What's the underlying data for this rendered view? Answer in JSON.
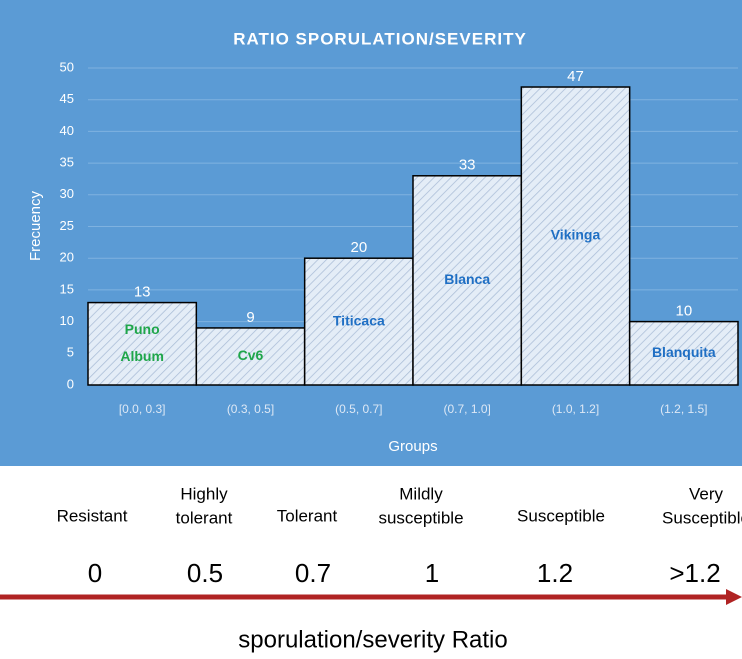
{
  "chart_data": {
    "type": "bar",
    "title": "RATIO SPORULATION/SEVERITY",
    "categories": [
      "[0.0, 0.3]",
      "(0.3, 0.5]",
      "(0.5, 0.7]",
      "(0.7, 1.0]",
      "(1.0, 1.2]",
      "(1.2, 1.5]"
    ],
    "values": [
      13,
      9,
      20,
      33,
      47,
      10
    ],
    "bar_labels": [
      [
        "Puno",
        "Album"
      ],
      [
        "Cv6"
      ],
      [
        "Titicaca"
      ],
      [
        "Blanca"
      ],
      [
        "Vikinga"
      ],
      [
        "Blanquita"
      ]
    ],
    "bar_label_colors": [
      "#1fa64a",
      "#1fa64a",
      "#1f6fc4",
      "#1f6fc4",
      "#1f6fc4",
      "#1f6fc4"
    ],
    "color": "#dfe9f5",
    "x_label": "Groups",
    "y_label": "Frecuency",
    "ylim": [
      0,
      50
    ],
    "yticks": [
      0,
      5,
      10,
      15,
      20,
      25,
      30,
      35,
      40,
      45,
      50
    ],
    "grid": true
  },
  "scale": {
    "classes": [
      [
        "Resistant"
      ],
      [
        "Highly",
        "tolerant"
      ],
      [
        "Tolerant"
      ],
      [
        "Mildly",
        "susceptible"
      ],
      [
        "Susceptible"
      ],
      [
        "Very",
        "Susceptible"
      ]
    ],
    "marks": [
      0,
      0.5,
      0.7,
      1,
      1.2,
      ">1.2"
    ],
    "caption": "sporulation/severity Ratio"
  }
}
